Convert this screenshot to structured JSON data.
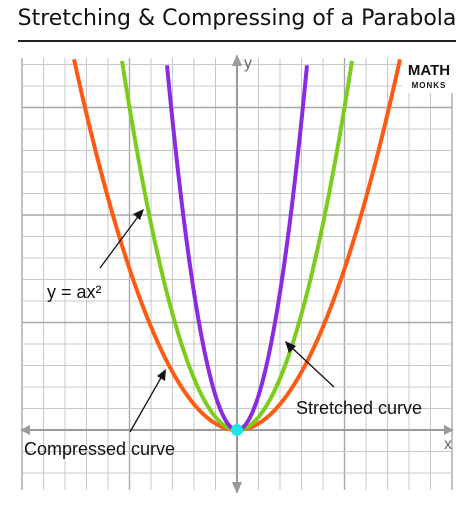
{
  "title": "Stretching & Compressing of a Parabola",
  "logo": {
    "top": "MATH",
    "bottom": "MONKS"
  },
  "axes": {
    "x_label": "x",
    "y_label": "y"
  },
  "labels": {
    "equation": "y = ax²",
    "stretched": "Stretched curve",
    "compressed": "Compressed curve"
  },
  "colors": {
    "compressed": "#ff5a14",
    "base": "#7ccc1e",
    "stretched": "#8a2be2",
    "vertex": "#1fe3ef",
    "grid": "#c8c8c8",
    "axis": "#9a9a9a"
  },
  "chart_data": {
    "type": "line",
    "series": [
      {
        "name": "Compressed curve",
        "a": 0.3
      },
      {
        "name": "y = ax²",
        "a": 0.6
      },
      {
        "name": "Stretched curve",
        "a": 1.6
      }
    ],
    "vertex": [
      0,
      0
    ],
    "xlabel": "x",
    "ylabel": "y",
    "grid": true
  }
}
